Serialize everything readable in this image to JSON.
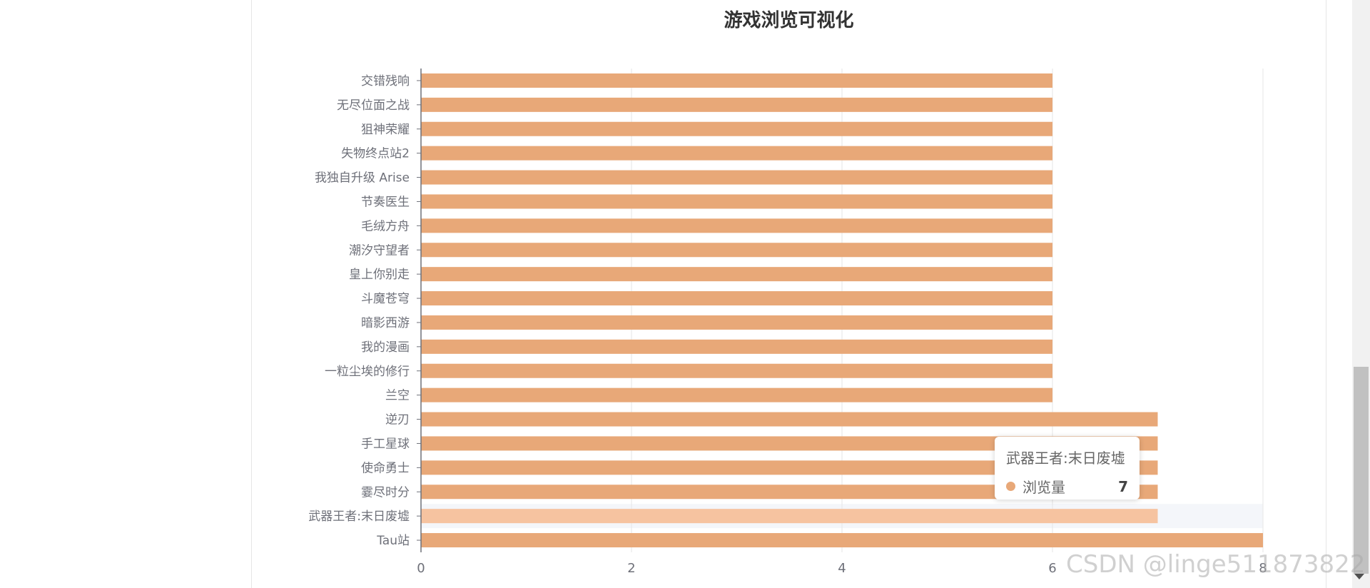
{
  "chart_data": {
    "type": "bar",
    "orientation": "horizontal",
    "title": "游戏浏览可视化",
    "categories": [
      "交错残响",
      "无尽位面之战",
      "狙神荣耀",
      "失物终点站2",
      "我独自升级 Arise",
      "节奏医生",
      "毛绒方舟",
      "潮汐守望者",
      "皇上你别走",
      "斗魔苍穹",
      "暗影西游",
      "我的漫画",
      "一粒尘埃的修行",
      "兰空",
      "逆刃",
      "手工星球",
      "使命勇士",
      "霎尽时分",
      "武器王者:末日废墟",
      "Tau站"
    ],
    "series": [
      {
        "name": "浏览量",
        "values": [
          6,
          6,
          6,
          6,
          6,
          6,
          6,
          6,
          6,
          6,
          6,
          6,
          6,
          6,
          7,
          7,
          7,
          7,
          7,
          8
        ]
      }
    ],
    "xlim": [
      0,
      8
    ],
    "xticks": [
      0,
      2,
      4,
      6,
      8
    ],
    "grid": "vertical",
    "bar_color": "#e8a878",
    "highlight_color": "#f6c3a0",
    "highlighted_category": "武器王者:末日废墟"
  },
  "tooltip": {
    "title": "武器王者:末日废墟",
    "series": "浏览量",
    "value": "7"
  },
  "watermark": "CSDN @linge511873822"
}
